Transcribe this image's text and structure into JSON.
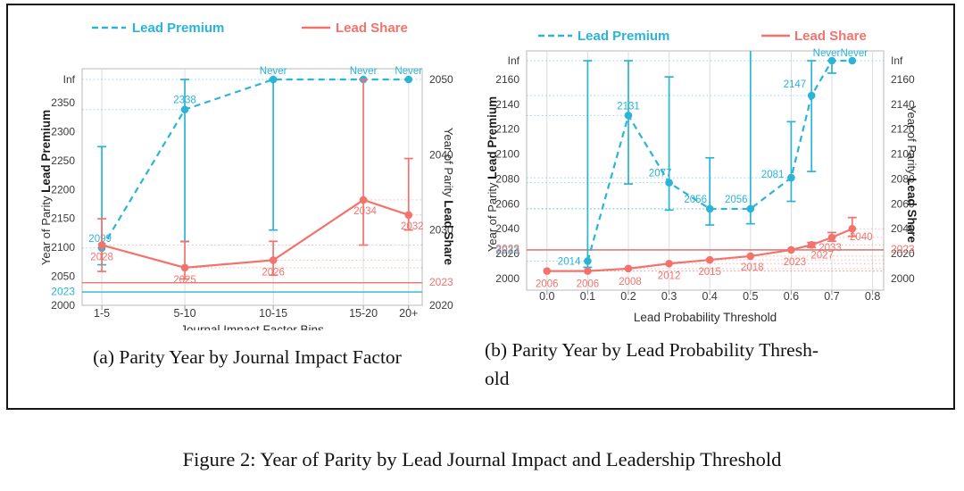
{
  "figure_caption": "Figure 2: Year of Parity by Lead Journal Impact and Leadership Threshold",
  "legend": {
    "premium_label": "Lead Premium",
    "share_label": "Lead Share"
  },
  "colors": {
    "premium": "#29b4d8",
    "share": "#f3736c",
    "grid": "#dcdcdc",
    "plot_border": "#c4c4c4",
    "tick_text": "#3a3a3a",
    "axis_title_text": "#2e2e2e",
    "caption_text": "#121212",
    "figure_border": "#161616"
  },
  "chart_data": [
    {
      "type": "line",
      "subcaption": "(a) Parity Year by Journal Impact Factor",
      "xlabel": "Journal Impact Factor Bins",
      "x_categories": [
        "1-5",
        "5-10",
        "10-15",
        "15-20",
        "20+"
      ],
      "left_axis": {
        "title": "Year of Parity",
        "title_bold": "Lead Premium",
        "ticks": [
          2000,
          2050,
          2100,
          2150,
          2200,
          2250,
          2300,
          2350
        ],
        "top_label": "Inf",
        "reference_line": 2023,
        "reference_label": "2023"
      },
      "right_axis": {
        "title": "Year of Parity",
        "title_bold": "Lead Share",
        "ticks": [
          2020,
          2030,
          2040,
          2050
        ],
        "reference_line": 2023,
        "reference_label": "2023"
      },
      "series": [
        {
          "name": "Lead Premium",
          "axis": "left",
          "line": "dashed",
          "color_key": "premium",
          "values": [
            2099,
            2338,
            "Never",
            "Never",
            "Never"
          ],
          "point_labels": [
            "2099",
            "2338",
            "Never",
            "Never",
            "Never"
          ],
          "error_bars": [
            [
              2070,
              2274
            ],
            [
              2110,
              "Inf"
            ],
            [
              2130,
              "Inf"
            ],
            null,
            null
          ]
        },
        {
          "name": "Lead Share",
          "axis": "right",
          "line": "solid",
          "color_key": "share",
          "values": [
            2028,
            2025,
            2026,
            2034,
            2032
          ],
          "point_labels": [
            "2028",
            "2025",
            "2026",
            "2034",
            "2032"
          ],
          "error_bars": [
            [
              2024.5,
              2031.5
            ],
            [
              2023.5,
              2028.5
            ],
            [
              2024,
              2028.5
            ],
            [
              2028,
              "Inf"
            ],
            [
              2030,
              2039.5
            ]
          ]
        }
      ]
    },
    {
      "type": "line",
      "subcaption_lines": [
        "(b) Parity Year by Lead Probability Thresh-",
        "old"
      ],
      "xlabel": "Lead Probability Threshold",
      "x_ticks": [
        0.0,
        0.1,
        0.2,
        0.3,
        0.4,
        0.5,
        0.6,
        0.7,
        0.8
      ],
      "x_tick_labels": [
        "0.0",
        "0.1",
        "0.2",
        "0.3",
        "0.4",
        "0.5",
        "0.6",
        "0.7",
        "0.8"
      ],
      "left_axis": {
        "title": "Year of Parity",
        "title_bold": "Lead Premium",
        "ticks": [
          2000,
          2020,
          2040,
          2060,
          2080,
          2100,
          2120,
          2140,
          2160
        ],
        "top_label": "Inf",
        "reference_line": 2023,
        "reference_label": "2023"
      },
      "right_axis": {
        "title": "Year of Parity",
        "title_bold": "Lead Share",
        "ticks": [
          2000,
          2020,
          2040,
          2060,
          2080,
          2100,
          2120,
          2140,
          2160
        ],
        "top_label": "Inf",
        "reference_line": 2023,
        "reference_label": "2023"
      },
      "series": [
        {
          "name": "Lead Premium",
          "axis": "left",
          "line": "dashed",
          "color_key": "premium",
          "x": [
            0.1,
            0.2,
            0.3,
            0.4,
            0.5,
            0.6,
            0.65,
            0.7,
            0.75
          ],
          "values": [
            2014,
            2131,
            2077,
            2056,
            2056,
            2081,
            2147,
            "Never",
            "Never"
          ],
          "point_labels": [
            "2014",
            "2131",
            "2077",
            "2056",
            "2056",
            "2081",
            "2147",
            "Never",
            "Never"
          ],
          "error_bars": [
            [
              2009,
              "Inf"
            ],
            [
              2076,
              "Inf"
            ],
            [
              2055,
              2162
            ],
            [
              2043,
              2097
            ],
            [
              2044,
              "Top"
            ],
            [
              2062,
              2126
            ],
            [
              2086,
              "Inf"
            ],
            [
              2165,
              "Inf"
            ],
            null
          ]
        },
        {
          "name": "Lead Share",
          "axis": "right",
          "line": "solid",
          "color_key": "share",
          "x": [
            0.0,
            0.1,
            0.2,
            0.3,
            0.4,
            0.5,
            0.6,
            0.65,
            0.7,
            0.75
          ],
          "values": [
            2006,
            2006,
            2008,
            2012,
            2015,
            2018,
            2023,
            2027,
            2033,
            2040
          ],
          "point_labels": [
            "2006",
            "2006",
            "2008",
            "2012",
            "2015",
            "2018",
            "2023",
            "2027",
            "2033",
            "2040"
          ],
          "error_bars": [
            null,
            null,
            null,
            null,
            null,
            null,
            null,
            [
              2025,
              2029
            ],
            [
              2030,
              2037
            ],
            [
              2034,
              2049
            ]
          ]
        }
      ]
    }
  ]
}
